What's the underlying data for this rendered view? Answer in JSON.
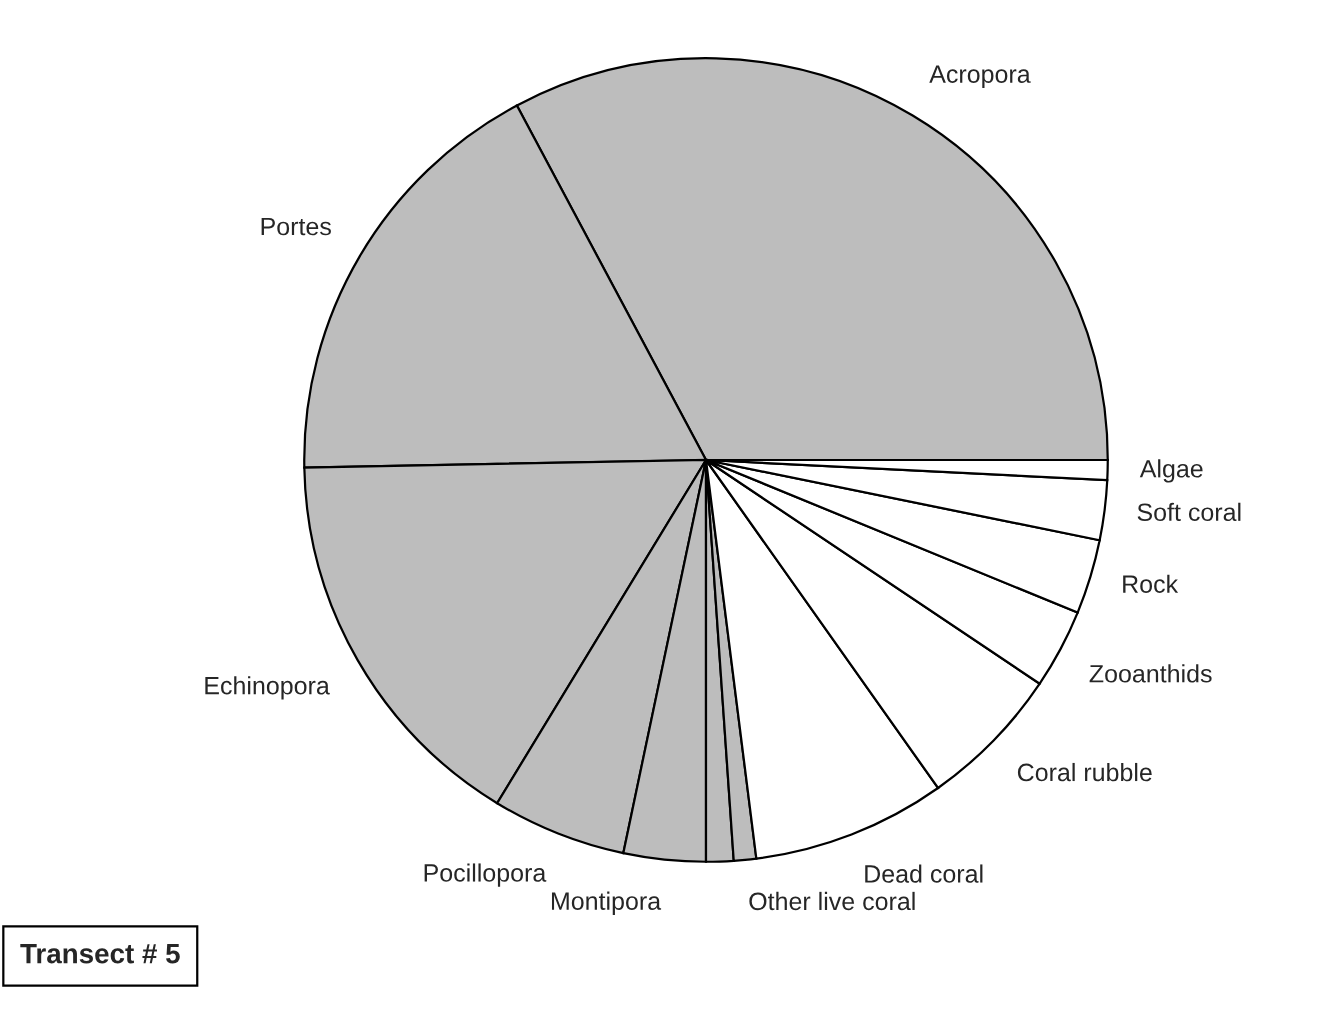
{
  "chart_data": {
    "type": "pie",
    "categories": [
      "Acropora",
      "Portes",
      "Echinopora",
      "Pocillopora",
      "Montipora",
      null,
      "Other live coral",
      "Dead coral",
      "Coral rubble",
      "Zooanthids",
      "Rock",
      "Soft coral",
      "Algae"
    ],
    "values": [
      32.8,
      17.5,
      16.0,
      5.4,
      3.3,
      1.1,
      0.9,
      7.8,
      5.8,
      3.2,
      3.0,
      2.4,
      0.8
    ],
    "colors": [
      "#bdbdbd",
      "#bdbdbd",
      "#bdbdbd",
      "#bdbdbd",
      "#bdbdbd",
      "#bdbdbd",
      "#bdbdbd",
      "#ffffff",
      "#ffffff",
      "#ffffff",
      "#ffffff",
      "#ffffff",
      "#ffffff"
    ],
    "annotations": [
      "Transect # 5"
    ]
  }
}
